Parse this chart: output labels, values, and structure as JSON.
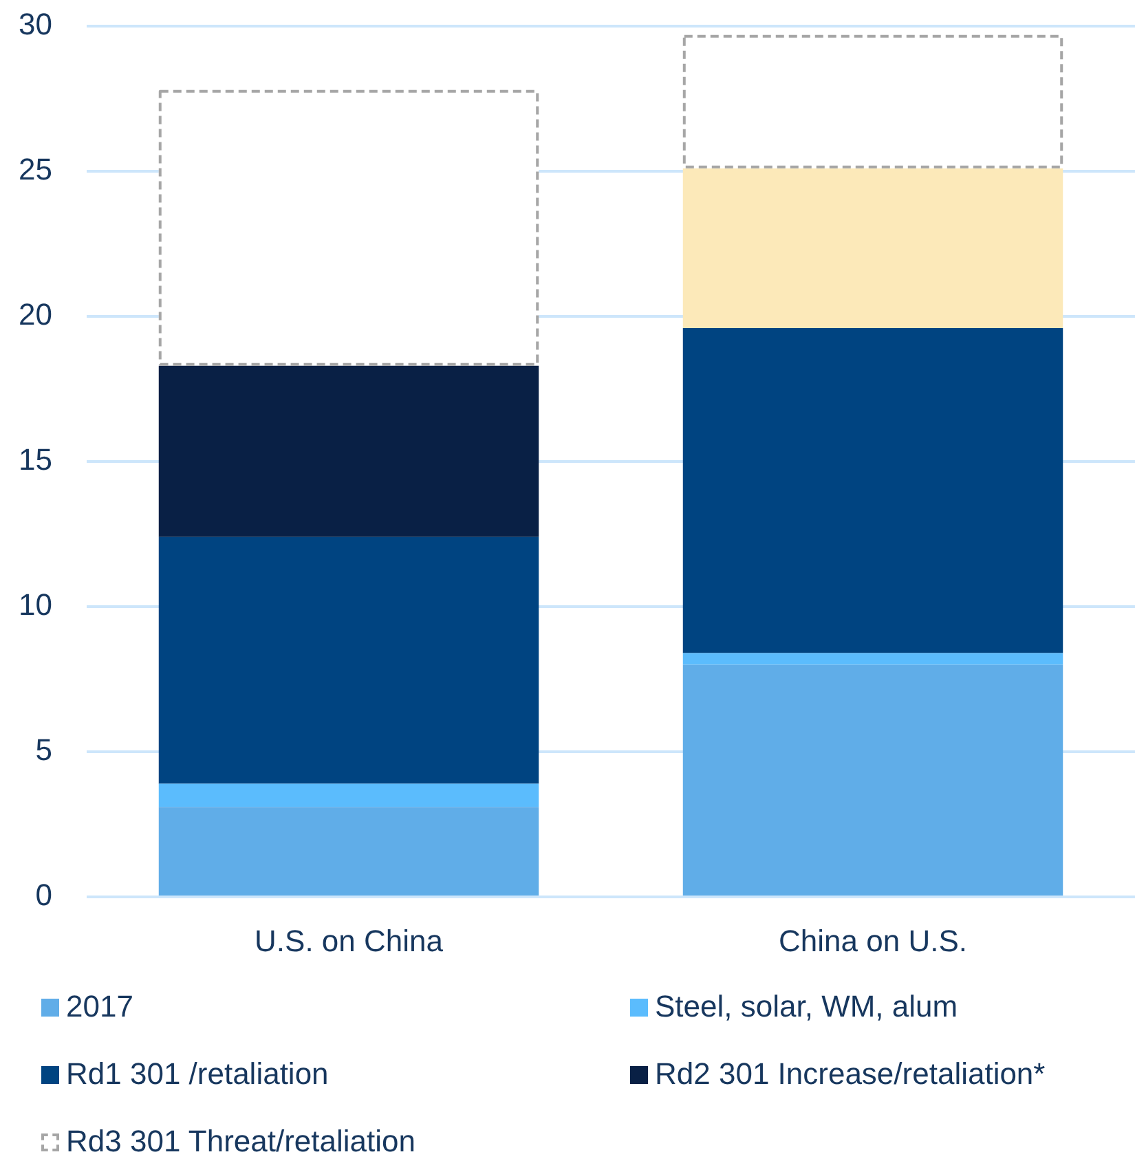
{
  "chart_data": {
    "type": "bar",
    "stacked": true,
    "categories": [
      "U.S. on China",
      "China on U.S."
    ],
    "series": [
      {
        "name": "2017",
        "color": "#60ade8",
        "values": [
          3.1,
          8.0
        ]
      },
      {
        "name": "Steel, solar, WM, alum",
        "color": "#5bbcfd",
        "values": [
          0.8,
          0.4
        ]
      },
      {
        "name": "Rd1 301 /retaliation",
        "color": "#004481",
        "values": [
          8.5,
          11.2
        ]
      },
      {
        "name": "Rd2 301 Increase/retaliation*",
        "color": "#092045",
        "colors": [
          "#092045",
          "#fce9b9"
        ],
        "values": [
          5.9,
          5.5
        ]
      },
      {
        "name": "Rd3 301 Threat/retaliation",
        "color": "#a6a6a6",
        "line_style": "dashed",
        "values": [
          9.5,
          4.6
        ]
      }
    ],
    "ylim": [
      0,
      30
    ],
    "yticks": [
      0,
      5,
      10,
      15,
      20,
      25,
      30
    ],
    "grid": "y",
    "legend": "bottom"
  }
}
